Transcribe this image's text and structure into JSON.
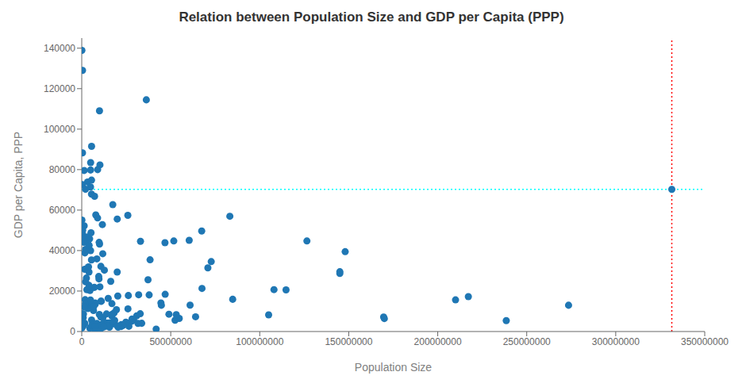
{
  "chart_data": {
    "type": "scatter",
    "title": "Relation between Population Size and GDP per Capita (PPP)",
    "xlabel": "Population Size",
    "ylabel": "GDP per Capita, PPP",
    "xlim": [
      0,
      350000000
    ],
    "xticks": [
      0,
      50000000,
      100000000,
      150000000,
      200000000,
      250000000,
      300000000,
      350000000
    ],
    "ylim": [
      0,
      145000
    ],
    "yticks": [
      0,
      20000,
      40000,
      60000,
      80000,
      100000,
      120000,
      140000
    ],
    "grid": false,
    "series": [
      {
        "color": "#1f77b4",
        "marker": "circle",
        "x": [
          83900,
          440000,
          36280000,
          9975000,
          5530000,
          430000,
          10230000,
          8940000,
          4980000,
          1400000,
          5510000,
          3280000,
          145000000,
          340000,
          4940000,
          2100000,
          67390000,
          83200000,
          60370000,
          46760000,
          17440000,
          5470000,
          10000000,
          8900000,
          11590000,
          38390000,
          19940000,
          25890000,
          5000000,
          126500000,
          51710000,
          9770000,
          2860000,
          10760000,
          19920000,
          10200000,
          7100000,
          210000000,
          217200000,
          52430000,
          1380000,
          54780000,
          30890000,
          114770000,
          33010000,
          170000000,
          4640000,
          105000000,
          48990000,
          37870000,
          19490000,
          12100000,
          16900000,
          16290000,
          10990000,
          22180000,
          29120000,
          46870000,
          20250000,
          67560000,
          44490000,
          72750000,
          84810000,
          32870000,
          70860000,
          28250000,
          18490000,
          12290000,
          22320000,
          14450000,
          12670000,
          11470000,
          6590000,
          18130000,
          16890000,
          6310000,
          7600000,
          5530000,
          8700000,
          13130000,
          6370000,
          12130000,
          25960000,
          4970000,
          3480000,
          10740000,
          7560000,
          11810000,
          100000,
          490000,
          520000,
          580000,
          700000,
          1040000,
          1110000,
          1790000,
          4970000,
          3340000,
          4430000,
          2140000,
          3240000,
          5210000,
          7890000,
          1680000,
          7210000,
          2610000,
          2880000,
          4070000,
          9680000,
          3800000,
          5460000,
          1920000,
          14870000,
          2060000,
          4100000,
          2190000,
          8490000,
          6030000,
          44740000,
          37240000,
          60870000,
          31970000,
          18060000,
          33690000,
          9900000,
          63960000,
          27970000,
          15890000,
          20470000,
          26490000,
          31600000,
          17460000,
          10740000,
          11850000,
          4540000,
          7060000,
          24780000,
          5040000,
          10850000,
          15610000,
          8520000,
          10650000,
          41810000,
          23130000,
          10720000,
          5890000,
          14500000,
          9890000,
          12300000,
          7430000,
          19910000,
          1600000,
          970000,
          1750000,
          850000,
          500000,
          760000,
          820000,
          210000,
          340000,
          100000,
          93000,
          200000,
          130000,
          95000,
          16950000,
          4150000,
          6680000,
          9540000,
          273500000,
          26180000,
          108000000,
          53100000,
          13900000,
          4900000,
          12720000,
          238500000,
          169600000,
          148000000,
          145000000
        ],
        "values": [
          138910,
          129050,
          114480,
          109020,
          91500,
          88290,
          82330,
          80000,
          79800,
          79590,
          74820,
          73910,
          28680,
          72580,
          71400,
          70300,
          49650,
          56960,
          45070,
          43900,
          62680,
          67890,
          43200,
          56100,
          52850,
          35440,
          55580,
          57390,
          83450,
          44740,
          44740,
          44060,
          31060,
          32180,
          29400,
          22080,
          21800,
          15640,
          17230,
          5580,
          52230,
          6450,
          7780,
          20600,
          44560,
          6400,
          20280,
          8230,
          8560,
          18080,
          10770,
          3760,
          7670,
          24770,
          14940,
          2500,
          5670,
          18380,
          17540,
          21300,
          14110,
          34550,
          15920,
          8780,
          31430,
          6150,
          5470,
          2260,
          3410,
          4220,
          4370,
          2600,
          10350,
          9160,
          8390,
          3880,
          13510,
          5690,
          1660,
          2950,
          2520,
          3780,
          11200,
          12530,
          11330,
          14950,
          14090,
          38440,
          55100,
          48020,
          50050,
          47180,
          45000,
          46200,
          44050,
          38850,
          39950,
          43860,
          45810,
          40570,
          46720,
          48800,
          57600,
          30780,
          66830,
          26400,
          20670,
          29400,
          25990,
          31960,
          35370,
          15740,
          16350,
          13790,
          22800,
          24600,
          35900,
          3630,
          12970,
          25570,
          13050,
          18160,
          5140,
          4070,
          8420,
          7290,
          5030,
          4280,
          2180,
          2580,
          4010,
          3780,
          7120,
          6730,
          1670,
          1430,
          4580,
          1990,
          1550,
          2140,
          3980,
          3320,
          1170,
          3050,
          2800,
          3150,
          2650,
          1930,
          2420,
          2430,
          2870,
          12020,
          8640,
          4060,
          2840,
          3800,
          4490,
          6810,
          7630,
          5040,
          8810,
          4610,
          3760,
          2290,
          1740,
          13780,
          42560,
          12260,
          27200,
          12980,
          17780,
          20700,
          8340,
          8670,
          15600,
          30300,
          5400,
          7190,
          39440,
          29540
        ]
      },
      {
        "color": "#1f77b4",
        "marker": "circle",
        "x": [
          331500000
        ],
        "values": [
          70248
        ]
      }
    ],
    "reference_lines": [
      {
        "axis": "y",
        "value": 70248,
        "color": "cyan",
        "line_style": "dotted"
      },
      {
        "axis": "x",
        "value": 331500000,
        "color": "red",
        "line_style": "dotted"
      }
    ]
  }
}
